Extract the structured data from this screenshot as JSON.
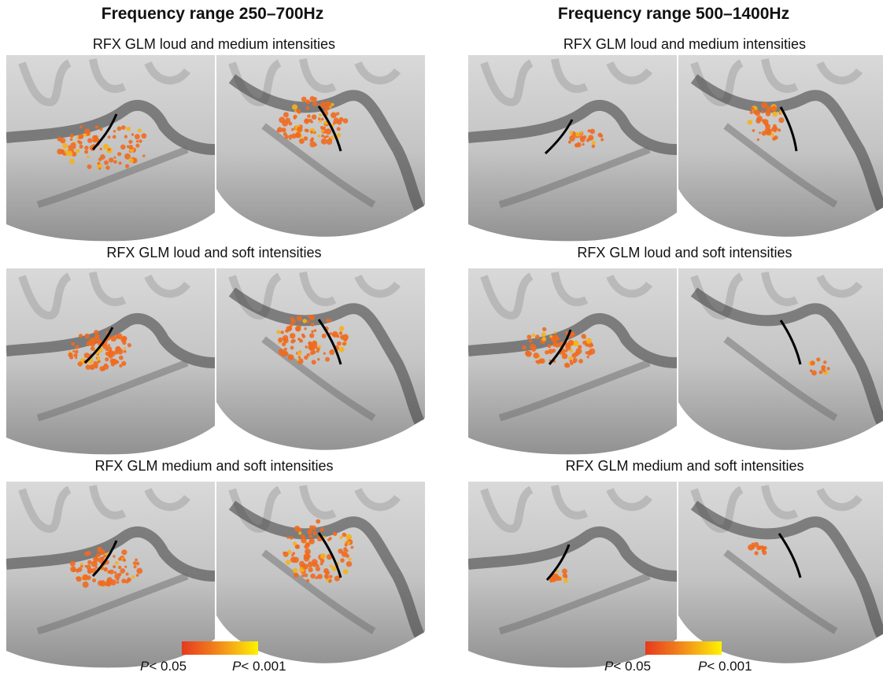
{
  "columns": [
    {
      "title": "Frequency range 250–700Hz",
      "rows": [
        {
          "title": "RFX GLM loud and medium intensities"
        },
        {
          "title": "RFX GLM loud and  soft intensities"
        },
        {
          "title": "RFX GLM medium and soft intensities"
        }
      ],
      "legend": {
        "p_symbol": "P",
        "low": "< 0.05",
        "high": "< 0.001"
      }
    },
    {
      "title": "Frequency range 500–1400Hz",
      "rows": [
        {
          "title": "RFX GLM loud and medium intensities"
        },
        {
          "title": "RFX GLM loud and  soft intensities"
        },
        {
          "title": "RFX GLM medium and  soft intensities"
        }
      ],
      "legend": {
        "p_symbol": "P",
        "low": "< 0.05",
        "high": "< 0.001"
      }
    }
  ],
  "colors": {
    "colorbar_low": "#e63a1e",
    "colorbar_high": "#fdf200",
    "activation": "#ef6a1f",
    "sulcus_line": "#000000"
  }
}
